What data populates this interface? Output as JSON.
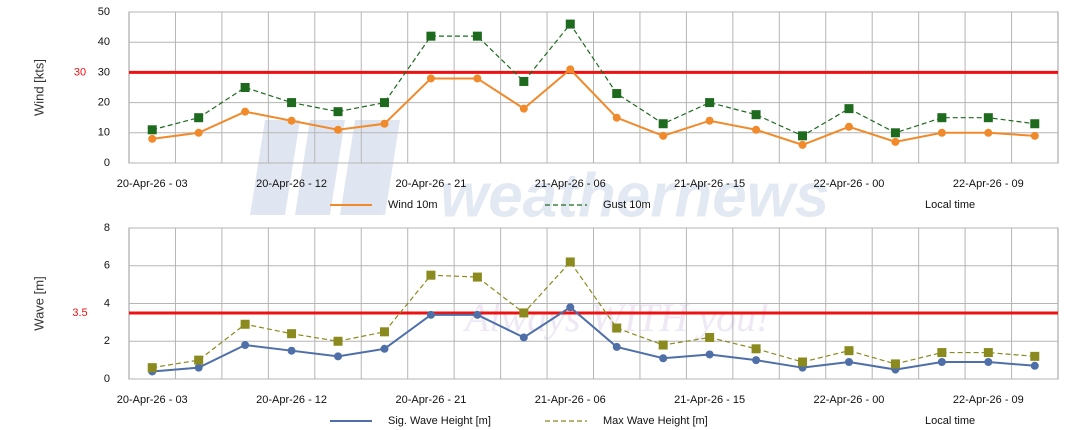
{
  "watermark": [
    "weathernews",
    "Always WITH you!"
  ],
  "chart_data": [
    {
      "type": "line",
      "ylabel": "Wind [kts]",
      "note": "Local time",
      "grid": true,
      "categories": [
        "20-Apr-26 - 03",
        null,
        null,
        "20-Apr-26 - 12",
        null,
        null,
        "20-Apr-26 - 21",
        null,
        null,
        "21-Apr-26 - 06",
        null,
        null,
        "21-Apr-26 - 15",
        null,
        null,
        "22-Apr-26 - 00",
        null,
        null,
        "22-Apr-26 - 09",
        null
      ],
      "ylim": [
        0,
        50
      ],
      "yticks": [
        0,
        10,
        20,
        30,
        40,
        50
      ],
      "threshold": 30,
      "threshold_color": "#ee1111",
      "series": [
        {
          "name": "Wind 10m",
          "color": "#f08a2a",
          "style": "solid",
          "marker": "circle",
          "values": [
            8,
            10,
            17,
            14,
            11,
            13,
            28,
            28,
            18,
            31,
            15,
            9,
            14,
            11,
            6,
            12,
            7,
            10,
            10,
            9
          ]
        },
        {
          "name": "Gust 10m",
          "color": "#1e6a1e",
          "style": "dashed",
          "marker": "square",
          "values": [
            11,
            15,
            25,
            20,
            17,
            20,
            42,
            42,
            27,
            46,
            23,
            13,
            20,
            16,
            9,
            18,
            10,
            15,
            15,
            13
          ]
        }
      ]
    },
    {
      "type": "line",
      "ylabel": "Wave [m]",
      "note": "Local time",
      "grid": true,
      "categories": [
        "20-Apr-26 - 03",
        null,
        null,
        "20-Apr-26 - 12",
        null,
        null,
        "20-Apr-26 - 21",
        null,
        null,
        "21-Apr-26 - 06",
        null,
        null,
        "21-Apr-26 - 15",
        null,
        null,
        "22-Apr-26 - 00",
        null,
        null,
        "22-Apr-26 - 09",
        null
      ],
      "ylim": [
        0,
        8
      ],
      "yticks": [
        0,
        2,
        4,
        6,
        8
      ],
      "threshold": 3.5,
      "threshold_color": "#ee1111",
      "series": [
        {
          "name": "Sig. Wave Height [m]",
          "color": "#4e6fa8",
          "style": "solid",
          "marker": "circle",
          "values": [
            0.4,
            0.6,
            1.8,
            1.5,
            1.2,
            1.6,
            3.4,
            3.4,
            2.2,
            3.8,
            1.7,
            1.1,
            1.3,
            1.0,
            0.6,
            0.9,
            0.5,
            0.9,
            0.9,
            0.7
          ]
        },
        {
          "name": "Max Wave Height [m]",
          "color": "#8a8a1e",
          "style": "dashed",
          "marker": "square",
          "values": [
            0.6,
            1.0,
            2.9,
            2.4,
            2.0,
            2.5,
            5.5,
            5.4,
            3.5,
            6.2,
            2.7,
            1.8,
            2.2,
            1.6,
            0.9,
            1.5,
            0.8,
            1.4,
            1.4,
            1.2
          ]
        }
      ]
    }
  ]
}
